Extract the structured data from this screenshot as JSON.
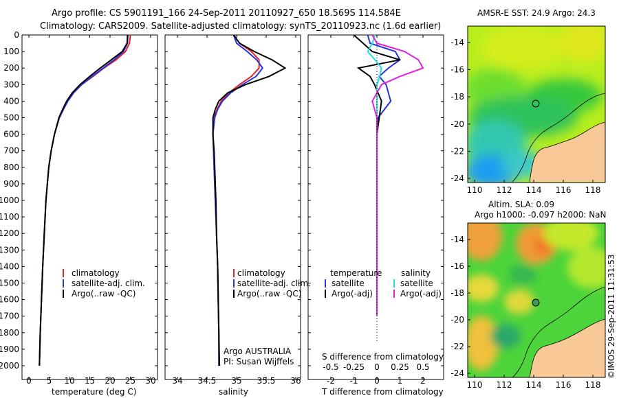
{
  "title_line1": "Argo profile: CS 5901191_166 24-Sep-2011 20110927_650 18.569S 114.584E",
  "title_line2": "Climatology: CARS2009. Satellite-adjusted climatology: synTS_20110923.nc (1.6d earlier)",
  "colors": {
    "climatology": "#e8231f",
    "satellite": "#2432e0",
    "argo": "#000000",
    "salinity_sat": "#22e0e0",
    "salinity_argo": "#e020e0",
    "land": "#f9c897"
  },
  "depth_ticks": [
    "0",
    "100",
    "200",
    "300",
    "400",
    "500",
    "600",
    "700",
    "800",
    "900",
    "1000",
    "1100",
    "1200",
    "1300",
    "1400",
    "1500",
    "1600",
    "1700",
    "1800",
    "1900",
    "2000"
  ],
  "temp_panel": {
    "xlabel": "temperature (deg C)",
    "xticks": [
      "0",
      "5",
      "10",
      "15",
      "20",
      "25",
      "30"
    ],
    "legend": [
      "climatology",
      "satellite-adj. clim.",
      "Argo(..raw -QC)"
    ]
  },
  "sal_panel": {
    "xlabel": "salinity",
    "xticks": [
      "34",
      "34.5",
      "35",
      "35.5",
      "36"
    ],
    "legend": [
      "climatology",
      "satellite-adj. clim.",
      "Argo(..raw -QC)"
    ],
    "note1": "Argo AUSTRALIA",
    "note2": "PI: Susan Wijffels"
  },
  "diff_panel": {
    "legend_temp_head": "temperature",
    "legend_sal_head": "salinity",
    "legend_temp": [
      "satellite",
      "Argo(-adj)"
    ],
    "legend_sal": [
      "satellite",
      "Argo(-adj)"
    ],
    "top_label": "S difference from climatology",
    "top_ticks": [
      "-0.5",
      "-0.25",
      "0",
      "0.25",
      "0.5"
    ],
    "xlabel": "T difference from climatology",
    "xticks": [
      "-2",
      "-1",
      "0",
      "1",
      "2"
    ]
  },
  "map_top": {
    "title": "AMSR-E SST: 24.9 Argo: 24.3",
    "yticks": [
      "-14",
      "-16",
      "-18",
      "-20",
      "-22",
      "-24"
    ],
    "xticks": [
      "110",
      "112",
      "114",
      "116",
      "118"
    ]
  },
  "map_bottom": {
    "title1": "Altim. SLA: 0.09",
    "title2": "Argo h1000: -0.097 h2000: NaN",
    "yticks": [
      "-14",
      "-16",
      "-18",
      "-20",
      "-22",
      "-24"
    ],
    "xticks": [
      "110",
      "112",
      "114",
      "116",
      "118"
    ]
  },
  "stamp": "©IMOS 29-Sep-2011 11:31:53",
  "chart_data": [
    {
      "type": "line",
      "xlabel": "temperature (deg C)",
      "ylabel": "",
      "xlim": [
        -1,
        31
      ],
      "ylim": [
        2100,
        0
      ],
      "series": [
        {
          "name": "climatology",
          "depth": [
            0,
            50,
            100,
            150,
            200,
            250,
            300,
            350,
            400,
            450,
            500,
            600,
            700,
            800,
            1000,
            1200,
            1400,
            1600,
            1800,
            2000
          ],
          "values": [
            25,
            24.8,
            23.8,
            21.5,
            18.5,
            15.8,
            13,
            11,
            9.6,
            8.5,
            7.5,
            6.3,
            5.5,
            4.9,
            4.2,
            3.8,
            3.4,
            3.1,
            2.8,
            2.6
          ]
        },
        {
          "name": "satellite-adj. clim.",
          "depth": [
            0,
            50,
            100,
            150,
            200,
            250,
            300,
            350,
            400,
            450,
            500,
            600,
            700,
            800,
            1000,
            1200,
            1400,
            1600,
            1800,
            2000
          ],
          "values": [
            24.4,
            24.3,
            23.3,
            21,
            18.3,
            15.6,
            13,
            11,
            9.6,
            8.5,
            7.5,
            6.3,
            5.5,
            4.9,
            4.2,
            3.8,
            3.4,
            3.1,
            2.8,
            2.6
          ]
        },
        {
          "name": "Argo(..raw -QC)",
          "depth": [
            0,
            50,
            100,
            150,
            200,
            250,
            300,
            350,
            400,
            450,
            500,
            600,
            700,
            800,
            1000,
            1200,
            1400,
            1600,
            1800,
            2000
          ],
          "values": [
            24.3,
            24.2,
            23,
            20.3,
            17.6,
            15,
            12.6,
            10.7,
            9.3,
            8.3,
            7.4,
            6.3,
            5.5,
            4.9,
            4.2,
            3.8,
            3.4,
            3.1,
            2.8,
            2.6
          ]
        }
      ]
    },
    {
      "type": "line",
      "xlabel": "salinity",
      "ylabel": "",
      "xlim": [
        33.8,
        36.2
      ],
      "ylim": [
        2100,
        0
      ],
      "series": [
        {
          "name": "climatology",
          "depth": [
            0,
            50,
            100,
            150,
            200,
            250,
            300,
            350,
            400,
            450,
            500,
            600,
            700,
            800,
            1000,
            1200,
            1400,
            1600,
            1800,
            2000
          ],
          "values": [
            34.95,
            35.05,
            35.25,
            35.38,
            35.38,
            35.25,
            35.05,
            34.87,
            34.74,
            34.67,
            34.62,
            34.6,
            34.61,
            34.62,
            34.64,
            34.66,
            34.68,
            34.69,
            34.7,
            34.7
          ]
        },
        {
          "name": "satellite-adj. clim.",
          "depth": [
            0,
            50,
            100,
            150,
            200,
            250,
            300,
            350,
            400,
            450,
            500,
            600,
            700,
            800,
            1000,
            1200,
            1400,
            1600,
            1800,
            2000
          ],
          "values": [
            34.95,
            35.0,
            35.18,
            35.34,
            35.44,
            35.33,
            35.1,
            34.9,
            34.76,
            34.68,
            34.63,
            34.6,
            34.61,
            34.62,
            34.64,
            34.66,
            34.68,
            34.69,
            34.7,
            34.7
          ]
        },
        {
          "name": "Argo(..raw -QC)",
          "depth": [
            0,
            50,
            100,
            150,
            200,
            250,
            300,
            350,
            400,
            450,
            500,
            600,
            700,
            800,
            1000,
            1200,
            1400,
            1600,
            1800,
            2000
          ],
          "values": [
            34.95,
            35.05,
            35.3,
            35.6,
            35.82,
            35.55,
            35.15,
            34.85,
            34.7,
            34.64,
            34.6,
            34.6,
            34.62,
            34.63,
            34.65,
            34.66,
            34.68,
            34.69,
            34.7,
            34.71
          ]
        }
      ]
    },
    {
      "type": "line",
      "xlabel": "T difference from climatology",
      "ylabel": "",
      "xlim": [
        -2.5,
        2.5
      ],
      "ylim": [
        2100,
        0
      ],
      "series": [
        {
          "name": "temperature satellite",
          "depth": [
            0,
            50,
            100,
            150,
            200,
            250,
            300,
            400,
            500,
            600,
            800,
            1000,
            1500,
            2000
          ],
          "values": [
            -0.4,
            -0.3,
            0.8,
            1.0,
            0.5,
            0.1,
            0.4,
            0.6,
            0.05,
            0,
            0,
            0,
            0,
            0
          ]
        },
        {
          "name": "temperature Argo(-adj)",
          "depth": [
            0,
            50,
            100,
            150,
            200,
            250,
            300,
            400,
            500,
            600,
            800,
            1000,
            1500,
            2000
          ],
          "values": [
            -1.0,
            -0.6,
            -0.2,
            1.0,
            -0.8,
            -0.3,
            -0.1,
            0.2,
            0.1,
            0,
            0,
            0,
            0,
            0
          ]
        },
        {
          "name": "salinity satellite",
          "depth": [
            0,
            50,
            100,
            150,
            200,
            250,
            300,
            400,
            500,
            600,
            800,
            1000,
            1500,
            2000
          ],
          "values": [
            -0.02,
            -0.05,
            -0.1,
            -0.02,
            0.05,
            0.03,
            0,
            0,
            0,
            0,
            0,
            0,
            0,
            0
          ]
        },
        {
          "name": "salinity Argo(-adj)",
          "depth": [
            0,
            50,
            100,
            150,
            200,
            250,
            300,
            400,
            500,
            600,
            800,
            1000,
            1500,
            2000
          ],
          "values": [
            -0.05,
            0,
            0.3,
            0.45,
            0.5,
            0.25,
            0.05,
            -0.05,
            0,
            0,
            0,
            0,
            0,
            0
          ]
        }
      ]
    }
  ]
}
